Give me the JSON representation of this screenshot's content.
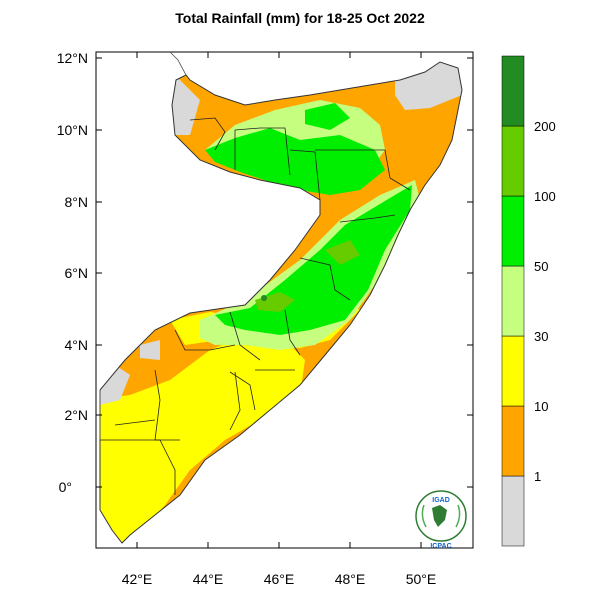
{
  "title": "Total Rainfall (mm) for 18-25 Oct 2022",
  "axes": {
    "lat_labels": [
      "12°N",
      "10°N",
      "8°N",
      "6°N",
      "4°N",
      "2°N",
      "0°"
    ],
    "lon_labels": [
      "42°E",
      "44°E",
      "46°E",
      "48°E",
      "50°E"
    ]
  },
  "legend": {
    "labels": [
      "1",
      "10",
      "30",
      "50",
      "100",
      "200"
    ],
    "bins": [
      {
        "range": "<1",
        "color": "#d9d9d9"
      },
      {
        "range": "1-10",
        "color": "#ffa500"
      },
      {
        "range": "10-30",
        "color": "#ffff00"
      },
      {
        "range": "30-50",
        "color": "#c6ff80"
      },
      {
        "range": "50-100",
        "color": "#00ee00"
      },
      {
        "range": "100-200",
        "color": "#66cc00"
      },
      {
        "range": ">200",
        "color": "#228b22"
      }
    ]
  },
  "logo": {
    "top_text": "IGAD",
    "bottom_text": "ICPAC"
  }
}
